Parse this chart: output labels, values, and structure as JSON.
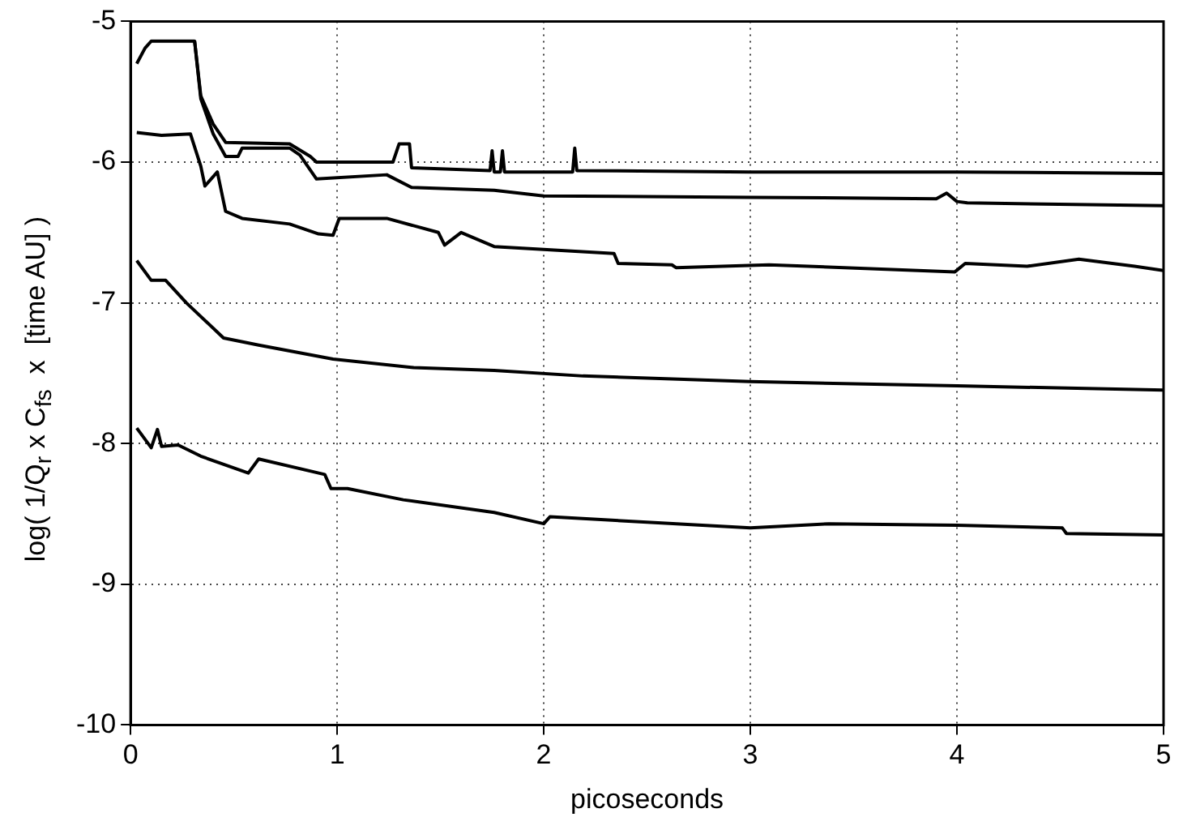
{
  "chart_data": {
    "type": "line",
    "xlabel": "picoseconds",
    "ylabel": "log( 1/Q$_{r}$ x C$_{fs}$  x  [time AU] )",
    "xlim": [
      0,
      5
    ],
    "xticks": [
      0,
      1,
      2,
      3,
      4,
      5
    ],
    "ylim": [
      -10,
      -5
    ],
    "yticks": [
      -10,
      -9,
      -8,
      -7,
      -6,
      -5
    ],
    "grid": true,
    "legend": false,
    "marker": "none",
    "line_style": "solid",
    "series": [
      {
        "color": "#000000",
        "x": [
          0.03,
          0.07,
          0.1,
          0.2,
          0.31,
          0.34,
          0.4,
          0.46,
          0.77,
          0.87,
          0.9,
          1.27,
          1.3,
          1.35,
          1.36,
          1.74,
          1.75,
          1.76,
          1.79,
          1.8,
          1.81,
          2.0,
          2.14,
          2.15,
          2.16,
          3.0,
          4.0,
          5.0
        ],
        "values": [
          -5.3,
          -5.19,
          -5.14,
          -5.14,
          -5.14,
          -5.53,
          -5.73,
          -5.86,
          -5.87,
          -5.96,
          -6.0,
          -6.0,
          -5.87,
          -5.87,
          -6.04,
          -6.06,
          -5.92,
          -6.07,
          -6.07,
          -5.92,
          -6.07,
          -6.07,
          -6.07,
          -5.9,
          -6.06,
          -6.07,
          -6.07,
          -6.08
        ]
      },
      {
        "color": "#000000",
        "x": [
          0.31,
          0.34,
          0.4,
          0.46,
          0.52,
          0.54,
          0.77,
          0.82,
          0.9,
          1.24,
          1.36,
          1.76,
          2.0,
          3.0,
          3.9,
          3.95,
          4.0,
          4.05,
          5.0
        ],
        "values": [
          -5.14,
          -5.55,
          -5.8,
          -5.96,
          -5.96,
          -5.9,
          -5.9,
          -5.95,
          -6.12,
          -6.09,
          -6.18,
          -6.2,
          -6.24,
          -6.25,
          -6.26,
          -6.22,
          -6.28,
          -6.29,
          -6.31
        ]
      },
      {
        "color": "#000000",
        "x": [
          0.03,
          0.15,
          0.29,
          0.34,
          0.36,
          0.42,
          0.46,
          0.54,
          0.77,
          0.91,
          0.98,
          1.01,
          1.24,
          1.49,
          1.52,
          1.6,
          1.76,
          2.34,
          2.36,
          2.62,
          2.64,
          3.09,
          3.99,
          4.04,
          4.34,
          4.59,
          4.86,
          5.0
        ],
        "values": [
          -5.79,
          -5.81,
          -5.8,
          -6.03,
          -6.17,
          -6.07,
          -6.35,
          -6.4,
          -6.44,
          -6.51,
          -6.52,
          -6.4,
          -6.4,
          -6.5,
          -6.59,
          -6.5,
          -6.6,
          -6.65,
          -6.72,
          -6.73,
          -6.75,
          -6.73,
          -6.78,
          -6.72,
          -6.74,
          -6.69,
          -6.74,
          -6.77
        ]
      },
      {
        "color": "#000000",
        "x": [
          0.03,
          0.1,
          0.17,
          0.27,
          0.45,
          0.62,
          0.98,
          1.37,
          1.76,
          2.19,
          3.0,
          4.0,
          5.0
        ],
        "values": [
          -6.7,
          -6.84,
          -6.84,
          -7.0,
          -7.25,
          -7.3,
          -7.4,
          -7.46,
          -7.48,
          -7.52,
          -7.56,
          -7.59,
          -7.62
        ]
      },
      {
        "color": "#000000",
        "x": [
          0.03,
          0.1,
          0.13,
          0.15,
          0.23,
          0.34,
          0.57,
          0.62,
          0.94,
          0.97,
          1.05,
          1.32,
          1.76,
          2.0,
          2.03,
          3.0,
          3.38,
          4.0,
          4.51,
          4.53,
          5.0
        ],
        "values": [
          -7.89,
          -8.03,
          -7.9,
          -8.02,
          -8.01,
          -8.09,
          -8.21,
          -8.11,
          -8.22,
          -8.32,
          -8.32,
          -8.4,
          -8.49,
          -8.57,
          -8.52,
          -8.6,
          -8.57,
          -8.58,
          -8.6,
          -8.64,
          -8.65
        ]
      }
    ]
  }
}
